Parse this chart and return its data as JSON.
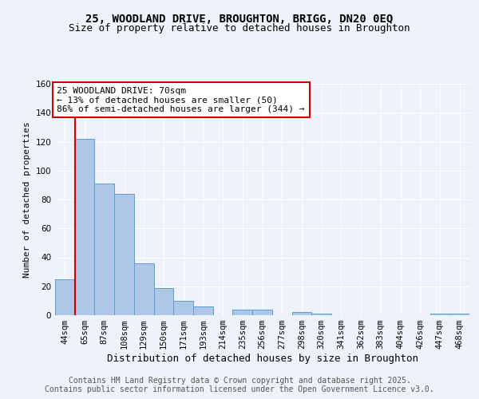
{
  "title_line1": "25, WOODLAND DRIVE, BROUGHTON, BRIGG, DN20 0EQ",
  "title_line2": "Size of property relative to detached houses in Broughton",
  "xlabel": "Distribution of detached houses by size in Broughton",
  "ylabel": "Number of detached properties",
  "categories": [
    "44sqm",
    "65sqm",
    "87sqm",
    "108sqm",
    "129sqm",
    "150sqm",
    "171sqm",
    "193sqm",
    "214sqm",
    "235sqm",
    "256sqm",
    "277sqm",
    "298sqm",
    "320sqm",
    "341sqm",
    "362sqm",
    "383sqm",
    "404sqm",
    "426sqm",
    "447sqm",
    "468sqm"
  ],
  "values": [
    25,
    122,
    91,
    84,
    36,
    19,
    10,
    6,
    0,
    4,
    4,
    0,
    2,
    1,
    0,
    0,
    0,
    0,
    0,
    1,
    1
  ],
  "bar_color": "#aec6e8",
  "bar_edge_color": "#5a9fd4",
  "annotation_line1": "25 WOODLAND DRIVE: 70sqm",
  "annotation_line2": "← 13% of detached houses are smaller (50)",
  "annotation_line3": "86% of semi-detached houses are larger (344) →",
  "annotation_box_color": "#ffffff",
  "annotation_box_edge_color": "#cc0000",
  "vline_color": "#cc0000",
  "ylim": [
    0,
    160
  ],
  "yticks": [
    0,
    20,
    40,
    60,
    80,
    100,
    120,
    140,
    160
  ],
  "background_color": "#eef2fb",
  "grid_color": "#ffffff",
  "footer_text": "Contains HM Land Registry data © Crown copyright and database right 2025.\nContains public sector information licensed under the Open Government Licence v3.0.",
  "title_fontsize": 10,
  "subtitle_fontsize": 9,
  "xlabel_fontsize": 9,
  "ylabel_fontsize": 8,
  "tick_fontsize": 7.5,
  "annotation_fontsize": 8,
  "footer_fontsize": 7
}
